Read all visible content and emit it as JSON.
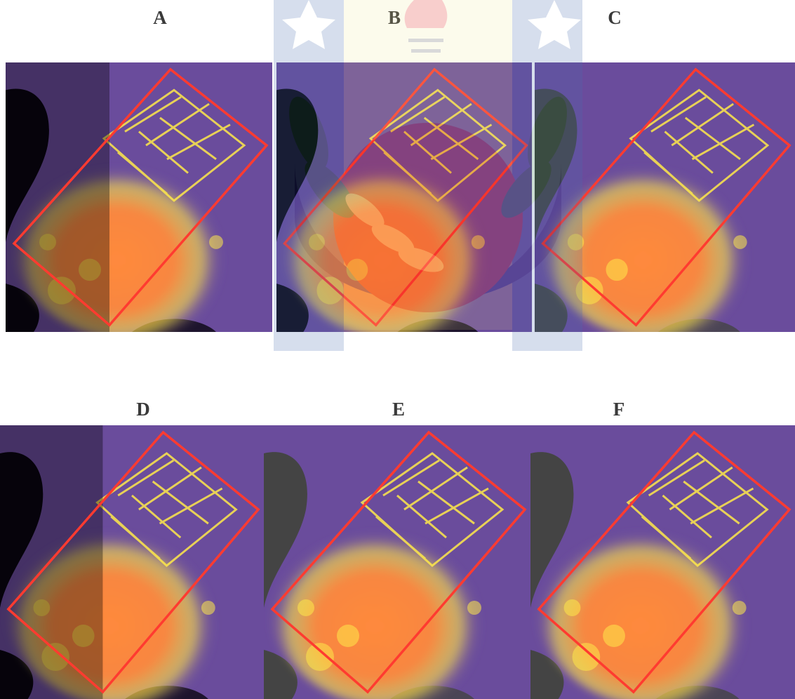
{
  "panels": [
    {
      "label": "A",
      "variant": "dark-left"
    },
    {
      "label": "B",
      "variant": "mid"
    },
    {
      "label": "C",
      "variant": "gray"
    },
    {
      "label": "D",
      "variant": "dark-left"
    },
    {
      "label": "E",
      "variant": "gray"
    },
    {
      "label": "F",
      "variant": "gray"
    }
  ],
  "colors": {
    "background_purple": "#6a4c9c",
    "outline_red": "#ff3b30",
    "hot_orange": "#ff8a3c",
    "hot_yellow": "#ffe94a",
    "shadow_black": "#0a0612",
    "shadow_gray": "#444444"
  },
  "icons": [
    "university-seal-watermark"
  ]
}
